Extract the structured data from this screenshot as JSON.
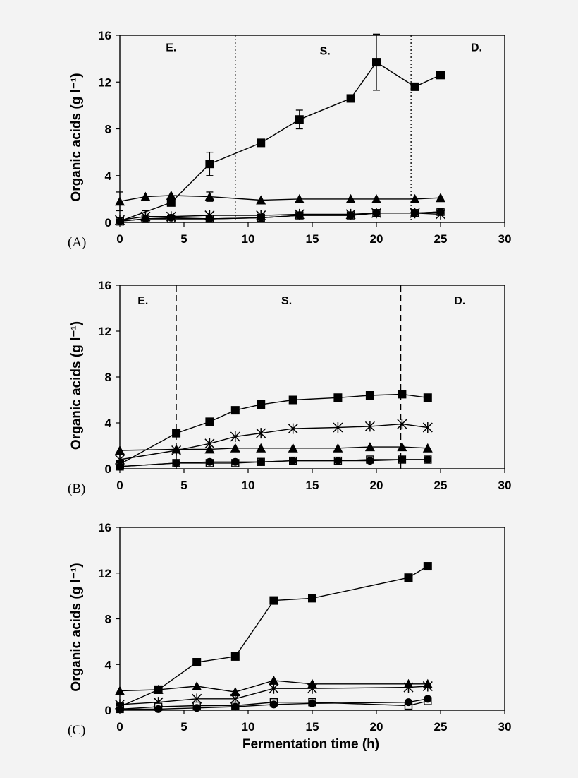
{
  "chart_data": [
    {
      "type": "line",
      "panel_label": "(A)",
      "title": "",
      "xlabel": "",
      "ylabel": "Organic acids (g l⁻¹)",
      "xlim": [
        0,
        30
      ],
      "ylim": [
        0,
        16
      ],
      "x_ticks": [
        "0",
        "5",
        "10",
        "15",
        "20",
        "25",
        "30"
      ],
      "y_ticks": [
        "0",
        "4",
        "8",
        "12",
        "16"
      ],
      "grid": false,
      "legend": "none",
      "phase_dividers": {
        "style": "dotted",
        "x": [
          9,
          22.7
        ]
      },
      "phase_labels": [
        {
          "text": "E.",
          "x": 4,
          "y": 15
        },
        {
          "text": "S.",
          "x": 16,
          "y": 14.7
        },
        {
          "text": "D.",
          "x": 27.8,
          "y": 15
        }
      ],
      "series": [
        {
          "marker": "filled-square",
          "x": [
            0,
            4,
            7,
            11,
            14,
            18,
            20,
            23,
            25
          ],
          "y": [
            0.1,
            1.7,
            5.0,
            6.8,
            8.8,
            10.6,
            13.7,
            11.6,
            12.6
          ],
          "err": [
            0,
            0,
            1.0,
            0,
            0.8,
            0,
            2.4,
            0,
            0
          ]
        },
        {
          "marker": "filled-triangle",
          "x": [
            0,
            2,
            4,
            7,
            11,
            14,
            18,
            20,
            23,
            25
          ],
          "y": [
            1.8,
            2.2,
            2.3,
            2.2,
            1.9,
            2.0,
            2.0,
            2.0,
            2.0,
            2.1
          ],
          "err": [
            0.8,
            0,
            0,
            0.4,
            0,
            0,
            0,
            0,
            0,
            0
          ]
        },
        {
          "marker": "asterisk",
          "x": [
            0,
            2,
            4,
            7,
            11,
            14,
            18,
            20,
            23,
            25
          ],
          "y": [
            0.2,
            0.5,
            0.5,
            0.6,
            0.6,
            0.7,
            0.7,
            0.8,
            0.8,
            0.7
          ],
          "err": [
            0,
            0.5,
            0,
            0,
            0,
            0,
            0,
            0,
            0,
            0
          ]
        },
        {
          "marker": "open-square",
          "x": [
            0,
            2,
            4,
            7,
            11,
            14,
            18,
            20,
            23,
            25
          ],
          "y": [
            0.1,
            0.3,
            0.3,
            0.3,
            0.4,
            0.6,
            0.6,
            0.8,
            0.8,
            0.9
          ],
          "err": [
            0,
            0,
            0,
            0,
            0,
            0,
            0,
            0,
            0,
            0
          ]
        },
        {
          "marker": "filled-circle",
          "x": [
            0,
            2,
            4,
            7,
            11,
            14,
            18,
            20,
            23,
            25
          ],
          "y": [
            0.1,
            0.3,
            0.4,
            0.3,
            0.4,
            0.6,
            0.6,
            0.8,
            0.8,
            0.9
          ],
          "err": [
            0,
            0,
            0,
            0,
            0,
            0,
            0,
            0,
            0,
            0
          ]
        }
      ]
    },
    {
      "type": "line",
      "panel_label": "(B)",
      "title": "",
      "xlabel": "",
      "ylabel": "Organic acids (g l⁻¹)",
      "xlim": [
        0,
        30
      ],
      "ylim": [
        0,
        16
      ],
      "x_ticks": [
        "0",
        "5",
        "10",
        "15",
        "20",
        "25",
        "30"
      ],
      "y_ticks": [
        "0",
        "4",
        "8",
        "12",
        "16"
      ],
      "grid": false,
      "legend": "none",
      "phase_dividers": {
        "style": "dashed",
        "x": [
          4.4,
          21.9
        ]
      },
      "phase_labels": [
        {
          "text": "E.",
          "x": 1.8,
          "y": 14.7
        },
        {
          "text": "S.",
          "x": 13,
          "y": 14.7
        },
        {
          "text": "D.",
          "x": 26.5,
          "y": 14.7
        }
      ],
      "series": [
        {
          "marker": "filled-square",
          "x": [
            0,
            4.4,
            7,
            9,
            11,
            13.5,
            17,
            19.5,
            22,
            24
          ],
          "y": [
            0.4,
            3.1,
            4.1,
            5.1,
            5.6,
            6.0,
            6.2,
            6.4,
            6.5,
            6.2
          ],
          "err": [
            0,
            0,
            0,
            0,
            0,
            0,
            0,
            0,
            0,
            0
          ]
        },
        {
          "marker": "asterisk",
          "x": [
            0,
            4.4,
            7,
            9,
            11,
            13.5,
            17,
            19.5,
            22,
            24
          ],
          "y": [
            0.8,
            1.6,
            2.2,
            2.8,
            3.1,
            3.5,
            3.6,
            3.7,
            3.9,
            3.6
          ],
          "err": [
            0,
            0,
            0,
            0,
            0,
            0,
            0,
            0,
            0,
            0
          ]
        },
        {
          "marker": "filled-triangle",
          "x": [
            0,
            4.4,
            7,
            9,
            11,
            13.5,
            17,
            19.5,
            22,
            24
          ],
          "y": [
            1.6,
            1.7,
            1.7,
            1.8,
            1.8,
            1.8,
            1.8,
            1.9,
            1.9,
            1.8
          ],
          "err": [
            0,
            0,
            0,
            0,
            0,
            0,
            0,
            0,
            0,
            0
          ]
        },
        {
          "marker": "open-square",
          "x": [
            0,
            4.4,
            7,
            9,
            11,
            13.5,
            17,
            19.5,
            22,
            24
          ],
          "y": [
            0.2,
            0.5,
            0.5,
            0.5,
            0.6,
            0.7,
            0.7,
            0.8,
            0.8,
            0.8
          ],
          "err": [
            0,
            0,
            0,
            0,
            0,
            0,
            0,
            0,
            0,
            0
          ]
        },
        {
          "marker": "filled-circle",
          "x": [
            0,
            4.4,
            7,
            9,
            11,
            13.5,
            17,
            19.5,
            22,
            24
          ],
          "y": [
            0.2,
            0.5,
            0.6,
            0.6,
            0.6,
            0.7,
            0.7,
            0.7,
            0.8,
            0.8
          ],
          "err": [
            0,
            0,
            0,
            0,
            0,
            0,
            0,
            0,
            0,
            0
          ]
        }
      ]
    },
    {
      "type": "line",
      "panel_label": "(C)",
      "title": "",
      "xlabel": "Fermentation time  (h)",
      "ylabel": "Organic acids (g l⁻¹)",
      "xlim": [
        0,
        30
      ],
      "ylim": [
        0,
        16
      ],
      "x_ticks": [
        "0",
        "5",
        "10",
        "15",
        "20",
        "25",
        "30"
      ],
      "y_ticks": [
        "0",
        "4",
        "8",
        "12",
        "16"
      ],
      "grid": false,
      "legend": "none",
      "phase_dividers": {
        "style": "none",
        "x": []
      },
      "phase_labels": [],
      "series": [
        {
          "marker": "filled-square",
          "x": [
            0,
            3,
            6,
            9,
            12,
            15,
            22.5,
            24
          ],
          "y": [
            0.3,
            1.8,
            4.2,
            4.7,
            9.6,
            9.8,
            11.6,
            12.6
          ],
          "err": [
            0,
            0,
            0,
            0,
            0,
            0,
            0,
            0
          ]
        },
        {
          "marker": "filled-triangle",
          "x": [
            0,
            3,
            6,
            9,
            12,
            15,
            22.5,
            24
          ],
          "y": [
            1.7,
            1.8,
            2.1,
            1.6,
            2.6,
            2.3,
            2.3,
            2.3
          ],
          "err": [
            0,
            0,
            0,
            0,
            0,
            0,
            0,
            0
          ]
        },
        {
          "marker": "asterisk",
          "x": [
            0,
            3,
            6,
            9,
            12,
            15,
            22.5,
            24
          ],
          "y": [
            0.5,
            0.7,
            1.0,
            1.0,
            1.9,
            1.9,
            2.0,
            2.1
          ],
          "err": [
            0,
            0,
            0,
            0,
            0,
            0,
            0,
            0
          ]
        },
        {
          "marker": "open-square",
          "x": [
            0,
            3,
            6,
            9,
            12,
            15,
            22.5,
            24
          ],
          "y": [
            0.1,
            0.3,
            0.4,
            0.4,
            0.7,
            0.7,
            0.4,
            0.8
          ],
          "err": [
            0,
            0,
            0,
            0,
            0,
            0,
            0,
            0
          ]
        },
        {
          "marker": "filled-circle",
          "x": [
            0,
            3,
            6,
            9,
            12,
            15,
            22.5,
            24
          ],
          "y": [
            0.1,
            0.1,
            0.2,
            0.3,
            0.5,
            0.6,
            0.7,
            1.0
          ],
          "err": [
            0,
            0,
            0,
            0,
            0,
            0,
            0,
            0
          ]
        }
      ]
    }
  ]
}
